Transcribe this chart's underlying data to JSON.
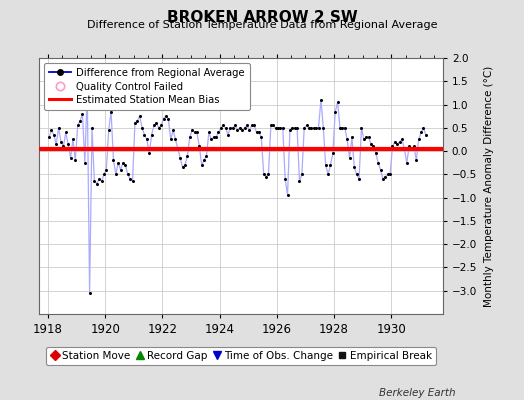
{
  "title": "BROKEN ARROW 2 SW",
  "subtitle": "Difference of Station Temperature Data from Regional Average",
  "ylabel": "Monthly Temperature Anomaly Difference (°C)",
  "xlabel_years": [
    1918,
    1920,
    1922,
    1924,
    1926,
    1928,
    1930
  ],
  "xlim": [
    1917.7,
    1931.8
  ],
  "ylim": [
    -3.5,
    2.0
  ],
  "yticks": [
    -3.0,
    -2.5,
    -2.0,
    -1.5,
    -1.0,
    -0.5,
    0.0,
    0.5,
    1.0,
    1.5,
    2.0
  ],
  "bias_value": 0.05,
  "background_color": "#e0e0e0",
  "plot_bg_color": "#ffffff",
  "line_color": "#aaaaff",
  "marker_color": "#000000",
  "bias_color": "#ff0000",
  "berkeley_earth_text": "Berkeley Earth",
  "data_x": [
    1918.042,
    1918.125,
    1918.208,
    1918.292,
    1918.375,
    1918.458,
    1918.542,
    1918.625,
    1918.708,
    1918.792,
    1918.875,
    1918.958,
    1919.042,
    1919.125,
    1919.208,
    1919.292,
    1919.375,
    1919.458,
    1919.542,
    1919.625,
    1919.708,
    1919.792,
    1919.875,
    1919.958,
    1920.042,
    1920.125,
    1920.208,
    1920.292,
    1920.375,
    1920.458,
    1920.542,
    1920.625,
    1920.708,
    1920.792,
    1920.875,
    1920.958,
    1921.042,
    1921.125,
    1921.208,
    1921.292,
    1921.375,
    1921.458,
    1921.542,
    1921.625,
    1921.708,
    1921.792,
    1921.875,
    1921.958,
    1922.042,
    1922.125,
    1922.208,
    1922.292,
    1922.375,
    1922.458,
    1922.542,
    1922.625,
    1922.708,
    1922.792,
    1922.875,
    1922.958,
    1923.042,
    1923.125,
    1923.208,
    1923.292,
    1923.375,
    1923.458,
    1923.542,
    1923.625,
    1923.708,
    1923.792,
    1923.875,
    1923.958,
    1924.042,
    1924.125,
    1924.208,
    1924.292,
    1924.375,
    1924.458,
    1924.542,
    1924.625,
    1924.708,
    1924.792,
    1924.875,
    1924.958,
    1925.042,
    1925.125,
    1925.208,
    1925.292,
    1925.375,
    1925.458,
    1925.542,
    1925.625,
    1925.708,
    1925.792,
    1925.875,
    1925.958,
    1926.042,
    1926.125,
    1926.208,
    1926.292,
    1926.375,
    1926.458,
    1926.542,
    1926.625,
    1926.708,
    1926.792,
    1926.875,
    1926.958,
    1927.042,
    1927.125,
    1927.208,
    1927.292,
    1927.375,
    1927.458,
    1927.542,
    1927.625,
    1927.708,
    1927.792,
    1927.875,
    1927.958,
    1928.042,
    1928.125,
    1928.208,
    1928.292,
    1928.375,
    1928.458,
    1928.542,
    1928.625,
    1928.708,
    1928.792,
    1928.875,
    1928.958,
    1929.042,
    1929.125,
    1929.208,
    1929.292,
    1929.375,
    1929.458,
    1929.542,
    1929.625,
    1929.708,
    1929.792,
    1929.875,
    1929.958,
    1930.042,
    1930.125,
    1930.208,
    1930.292,
    1930.375,
    1930.458,
    1930.542,
    1930.625,
    1930.708,
    1930.792,
    1930.875,
    1930.958,
    1931.042,
    1931.125,
    1931.208
  ],
  "data_y": [
    0.3,
    0.45,
    0.35,
    0.15,
    0.5,
    0.2,
    0.1,
    0.4,
    0.15,
    -0.15,
    0.25,
    -0.2,
    0.55,
    0.65,
    0.8,
    -0.25,
    1.3,
    -3.05,
    0.5,
    -0.65,
    -0.7,
    -0.6,
    -0.65,
    -0.5,
    -0.4,
    0.45,
    0.85,
    -0.2,
    -0.5,
    -0.25,
    -0.4,
    -0.25,
    -0.3,
    -0.5,
    -0.6,
    -0.65,
    0.6,
    0.65,
    0.75,
    0.5,
    0.35,
    0.25,
    -0.05,
    0.35,
    0.55,
    0.6,
    0.5,
    0.55,
    0.7,
    0.75,
    0.7,
    0.25,
    0.45,
    0.25,
    0.05,
    -0.15,
    -0.35,
    -0.3,
    -0.1,
    0.3,
    0.45,
    0.4,
    0.4,
    0.1,
    -0.3,
    -0.2,
    -0.1,
    0.4,
    0.25,
    0.3,
    0.3,
    0.4,
    0.5,
    0.55,
    0.5,
    0.35,
    0.5,
    0.5,
    0.55,
    0.45,
    0.5,
    0.45,
    0.5,
    0.55,
    0.45,
    0.55,
    0.55,
    0.4,
    0.4,
    0.3,
    -0.5,
    -0.55,
    -0.5,
    0.55,
    0.55,
    0.5,
    0.5,
    0.5,
    0.5,
    -0.6,
    -0.95,
    0.45,
    0.5,
    0.5,
    0.5,
    -0.65,
    -0.5,
    0.5,
    0.55,
    0.5,
    0.5,
    0.5,
    0.5,
    0.5,
    1.1,
    0.5,
    -0.3,
    -0.5,
    -0.3,
    -0.05,
    0.85,
    1.05,
    0.5,
    0.5,
    0.5,
    0.25,
    -0.15,
    0.3,
    -0.35,
    -0.5,
    -0.6,
    0.5,
    0.25,
    0.3,
    0.3,
    0.15,
    0.1,
    -0.05,
    -0.25,
    -0.4,
    -0.6,
    -0.55,
    -0.5,
    -0.5,
    0.1,
    0.2,
    0.15,
    0.2,
    0.25,
    0.05,
    -0.25,
    0.1,
    0.05,
    0.1,
    -0.2,
    0.25,
    0.4,
    0.5,
    0.35
  ]
}
